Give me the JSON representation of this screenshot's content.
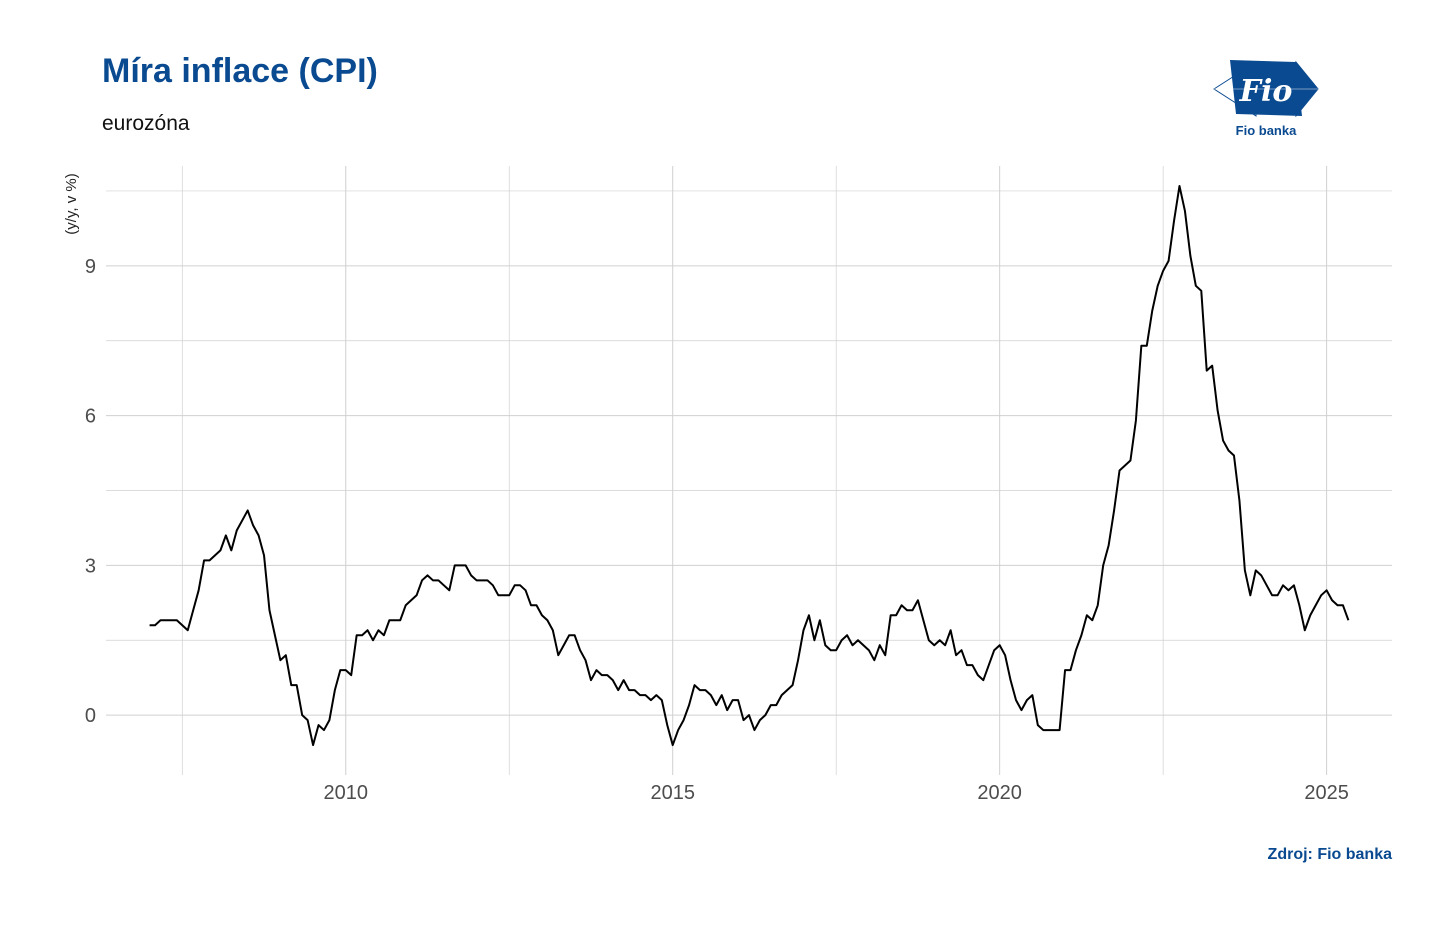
{
  "header": {
    "title": "Míra inflace (CPI)",
    "subtitle": "eurozóna"
  },
  "logo": {
    "mark_text": "Fio",
    "name": "Fio banka",
    "color": "#0a4a90"
  },
  "footer": {
    "source": "Zdroj: Fio banka"
  },
  "colors": {
    "title": "#0a4a90",
    "line": "#000000",
    "grid": "#d0d0d0"
  },
  "chart_data": {
    "type": "line",
    "title": "Míra inflace (CPI)",
    "subtitle": "eurozóna",
    "xlabel": "",
    "ylabel": "(y/y, v %)",
    "xlim": [
      "2006-05",
      "2026-01"
    ],
    "ylim": [
      -1.2,
      11.0
    ],
    "x_ticks": [
      "2010",
      "2015",
      "2020",
      "2025"
    ],
    "y_ticks": [
      0,
      3,
      6,
      9
    ],
    "grid": true,
    "legend": "none",
    "series": [
      {
        "color": "#000000",
        "points": [
          [
            "2007-01",
            1.8
          ],
          [
            "2007-02",
            1.8
          ],
          [
            "2007-03",
            1.9
          ],
          [
            "2007-04",
            1.9
          ],
          [
            "2007-05",
            1.9
          ],
          [
            "2007-06",
            1.9
          ],
          [
            "2007-07",
            1.8
          ],
          [
            "2007-08",
            1.7
          ],
          [
            "2007-09",
            2.1
          ],
          [
            "2007-10",
            2.5
          ],
          [
            "2007-11",
            3.1
          ],
          [
            "2007-12",
            3.1
          ],
          [
            "2008-01",
            3.2
          ],
          [
            "2008-02",
            3.3
          ],
          [
            "2008-03",
            3.6
          ],
          [
            "2008-04",
            3.3
          ],
          [
            "2008-05",
            3.7
          ],
          [
            "2008-06",
            3.9
          ],
          [
            "2008-07",
            4.1
          ],
          [
            "2008-08",
            3.8
          ],
          [
            "2008-09",
            3.6
          ],
          [
            "2008-10",
            3.2
          ],
          [
            "2008-11",
            2.1
          ],
          [
            "2008-12",
            1.6
          ],
          [
            "2009-01",
            1.1
          ],
          [
            "2009-02",
            1.2
          ],
          [
            "2009-03",
            0.6
          ],
          [
            "2009-04",
            0.6
          ],
          [
            "2009-05",
            0.0
          ],
          [
            "2009-06",
            -0.1
          ],
          [
            "2009-07",
            -0.6
          ],
          [
            "2009-08",
            -0.2
          ],
          [
            "2009-09",
            -0.3
          ],
          [
            "2009-10",
            -0.1
          ],
          [
            "2009-11",
            0.5
          ],
          [
            "2009-12",
            0.9
          ],
          [
            "2010-01",
            0.9
          ],
          [
            "2010-02",
            0.8
          ],
          [
            "2010-03",
            1.6
          ],
          [
            "2010-04",
            1.6
          ],
          [
            "2010-05",
            1.7
          ],
          [
            "2010-06",
            1.5
          ],
          [
            "2010-07",
            1.7
          ],
          [
            "2010-08",
            1.6
          ],
          [
            "2010-09",
            1.9
          ],
          [
            "2010-10",
            1.9
          ],
          [
            "2010-11",
            1.9
          ],
          [
            "2010-12",
            2.2
          ],
          [
            "2011-01",
            2.3
          ],
          [
            "2011-02",
            2.4
          ],
          [
            "2011-03",
            2.7
          ],
          [
            "2011-04",
            2.8
          ],
          [
            "2011-05",
            2.7
          ],
          [
            "2011-06",
            2.7
          ],
          [
            "2011-07",
            2.6
          ],
          [
            "2011-08",
            2.5
          ],
          [
            "2011-09",
            3.0
          ],
          [
            "2011-10",
            3.0
          ],
          [
            "2011-11",
            3.0
          ],
          [
            "2011-12",
            2.8
          ],
          [
            "2012-01",
            2.7
          ],
          [
            "2012-02",
            2.7
          ],
          [
            "2012-03",
            2.7
          ],
          [
            "2012-04",
            2.6
          ],
          [
            "2012-05",
            2.4
          ],
          [
            "2012-06",
            2.4
          ],
          [
            "2012-07",
            2.4
          ],
          [
            "2012-08",
            2.6
          ],
          [
            "2012-09",
            2.6
          ],
          [
            "2012-10",
            2.5
          ],
          [
            "2012-11",
            2.2
          ],
          [
            "2012-12",
            2.2
          ],
          [
            "2013-01",
            2.0
          ],
          [
            "2013-02",
            1.9
          ],
          [
            "2013-03",
            1.7
          ],
          [
            "2013-04",
            1.2
          ],
          [
            "2013-05",
            1.4
          ],
          [
            "2013-06",
            1.6
          ],
          [
            "2013-07",
            1.6
          ],
          [
            "2013-08",
            1.3
          ],
          [
            "2013-09",
            1.1
          ],
          [
            "2013-10",
            0.7
          ],
          [
            "2013-11",
            0.9
          ],
          [
            "2013-12",
            0.8
          ],
          [
            "2014-01",
            0.8
          ],
          [
            "2014-02",
            0.7
          ],
          [
            "2014-03",
            0.5
          ],
          [
            "2014-04",
            0.7
          ],
          [
            "2014-05",
            0.5
          ],
          [
            "2014-06",
            0.5
          ],
          [
            "2014-07",
            0.4
          ],
          [
            "2014-08",
            0.4
          ],
          [
            "2014-09",
            0.3
          ],
          [
            "2014-10",
            0.4
          ],
          [
            "2014-11",
            0.3
          ],
          [
            "2014-12",
            -0.2
          ],
          [
            "2015-01",
            -0.6
          ],
          [
            "2015-02",
            -0.3
          ],
          [
            "2015-03",
            -0.1
          ],
          [
            "2015-04",
            0.2
          ],
          [
            "2015-05",
            0.6
          ],
          [
            "2015-06",
            0.5
          ],
          [
            "2015-07",
            0.5
          ],
          [
            "2015-08",
            0.4
          ],
          [
            "2015-09",
            0.2
          ],
          [
            "2015-10",
            0.4
          ],
          [
            "2015-11",
            0.1
          ],
          [
            "2015-12",
            0.3
          ],
          [
            "2016-01",
            0.3
          ],
          [
            "2016-02",
            -0.1
          ],
          [
            "2016-03",
            0.0
          ],
          [
            "2016-04",
            -0.3
          ],
          [
            "2016-05",
            -0.1
          ],
          [
            "2016-06",
            0.0
          ],
          [
            "2016-07",
            0.2
          ],
          [
            "2016-08",
            0.2
          ],
          [
            "2016-09",
            0.4
          ],
          [
            "2016-10",
            0.5
          ],
          [
            "2016-11",
            0.6
          ],
          [
            "2016-12",
            1.1
          ],
          [
            "2017-01",
            1.7
          ],
          [
            "2017-02",
            2.0
          ],
          [
            "2017-03",
            1.5
          ],
          [
            "2017-04",
            1.9
          ],
          [
            "2017-05",
            1.4
          ],
          [
            "2017-06",
            1.3
          ],
          [
            "2017-07",
            1.3
          ],
          [
            "2017-08",
            1.5
          ],
          [
            "2017-09",
            1.6
          ],
          [
            "2017-10",
            1.4
          ],
          [
            "2017-11",
            1.5
          ],
          [
            "2017-12",
            1.4
          ],
          [
            "2018-01",
            1.3
          ],
          [
            "2018-02",
            1.1
          ],
          [
            "2018-03",
            1.4
          ],
          [
            "2018-04",
            1.2
          ],
          [
            "2018-05",
            2.0
          ],
          [
            "2018-06",
            2.0
          ],
          [
            "2018-07",
            2.2
          ],
          [
            "2018-08",
            2.1
          ],
          [
            "2018-09",
            2.1
          ],
          [
            "2018-10",
            2.3
          ],
          [
            "2018-11",
            1.9
          ],
          [
            "2018-12",
            1.5
          ],
          [
            "2019-01",
            1.4
          ],
          [
            "2019-02",
            1.5
          ],
          [
            "2019-03",
            1.4
          ],
          [
            "2019-04",
            1.7
          ],
          [
            "2019-05",
            1.2
          ],
          [
            "2019-06",
            1.3
          ],
          [
            "2019-07",
            1.0
          ],
          [
            "2019-08",
            1.0
          ],
          [
            "2019-09",
            0.8
          ],
          [
            "2019-10",
            0.7
          ],
          [
            "2019-11",
            1.0
          ],
          [
            "2019-12",
            1.3
          ],
          [
            "2020-01",
            1.4
          ],
          [
            "2020-02",
            1.2
          ],
          [
            "2020-03",
            0.7
          ],
          [
            "2020-04",
            0.3
          ],
          [
            "2020-05",
            0.1
          ],
          [
            "2020-06",
            0.3
          ],
          [
            "2020-07",
            0.4
          ],
          [
            "2020-08",
            -0.2
          ],
          [
            "2020-09",
            -0.3
          ],
          [
            "2020-10",
            -0.3
          ],
          [
            "2020-11",
            -0.3
          ],
          [
            "2020-12",
            -0.3
          ],
          [
            "2021-01",
            0.9
          ],
          [
            "2021-02",
            0.9
          ],
          [
            "2021-03",
            1.3
          ],
          [
            "2021-04",
            1.6
          ],
          [
            "2021-05",
            2.0
          ],
          [
            "2021-06",
            1.9
          ],
          [
            "2021-07",
            2.2
          ],
          [
            "2021-08",
            3.0
          ],
          [
            "2021-09",
            3.4
          ],
          [
            "2021-10",
            4.1
          ],
          [
            "2021-11",
            4.9
          ],
          [
            "2021-12",
            5.0
          ],
          [
            "2022-01",
            5.1
          ],
          [
            "2022-02",
            5.9
          ],
          [
            "2022-03",
            7.4
          ],
          [
            "2022-04",
            7.4
          ],
          [
            "2022-05",
            8.1
          ],
          [
            "2022-06",
            8.6
          ],
          [
            "2022-07",
            8.9
          ],
          [
            "2022-08",
            9.1
          ],
          [
            "2022-09",
            9.9
          ],
          [
            "2022-10",
            10.6
          ],
          [
            "2022-11",
            10.1
          ],
          [
            "2022-12",
            9.2
          ],
          [
            "2023-01",
            8.6
          ],
          [
            "2023-02",
            8.5
          ],
          [
            "2023-03",
            6.9
          ],
          [
            "2023-04",
            7.0
          ],
          [
            "2023-05",
            6.1
          ],
          [
            "2023-06",
            5.5
          ],
          [
            "2023-07",
            5.3
          ],
          [
            "2023-08",
            5.2
          ],
          [
            "2023-09",
            4.3
          ],
          [
            "2023-10",
            2.9
          ],
          [
            "2023-11",
            2.4
          ],
          [
            "2023-12",
            2.9
          ],
          [
            "2024-01",
            2.8
          ],
          [
            "2024-02",
            2.6
          ],
          [
            "2024-03",
            2.4
          ],
          [
            "2024-04",
            2.4
          ],
          [
            "2024-05",
            2.6
          ],
          [
            "2024-06",
            2.5
          ],
          [
            "2024-07",
            2.6
          ],
          [
            "2024-08",
            2.2
          ],
          [
            "2024-09",
            1.7
          ],
          [
            "2024-10",
            2.0
          ],
          [
            "2024-11",
            2.2
          ],
          [
            "2024-12",
            2.4
          ],
          [
            "2025-01",
            2.5
          ],
          [
            "2025-02",
            2.3
          ],
          [
            "2025-03",
            2.2
          ],
          [
            "2025-04",
            2.2
          ],
          [
            "2025-05",
            1.9
          ]
        ]
      }
    ]
  }
}
